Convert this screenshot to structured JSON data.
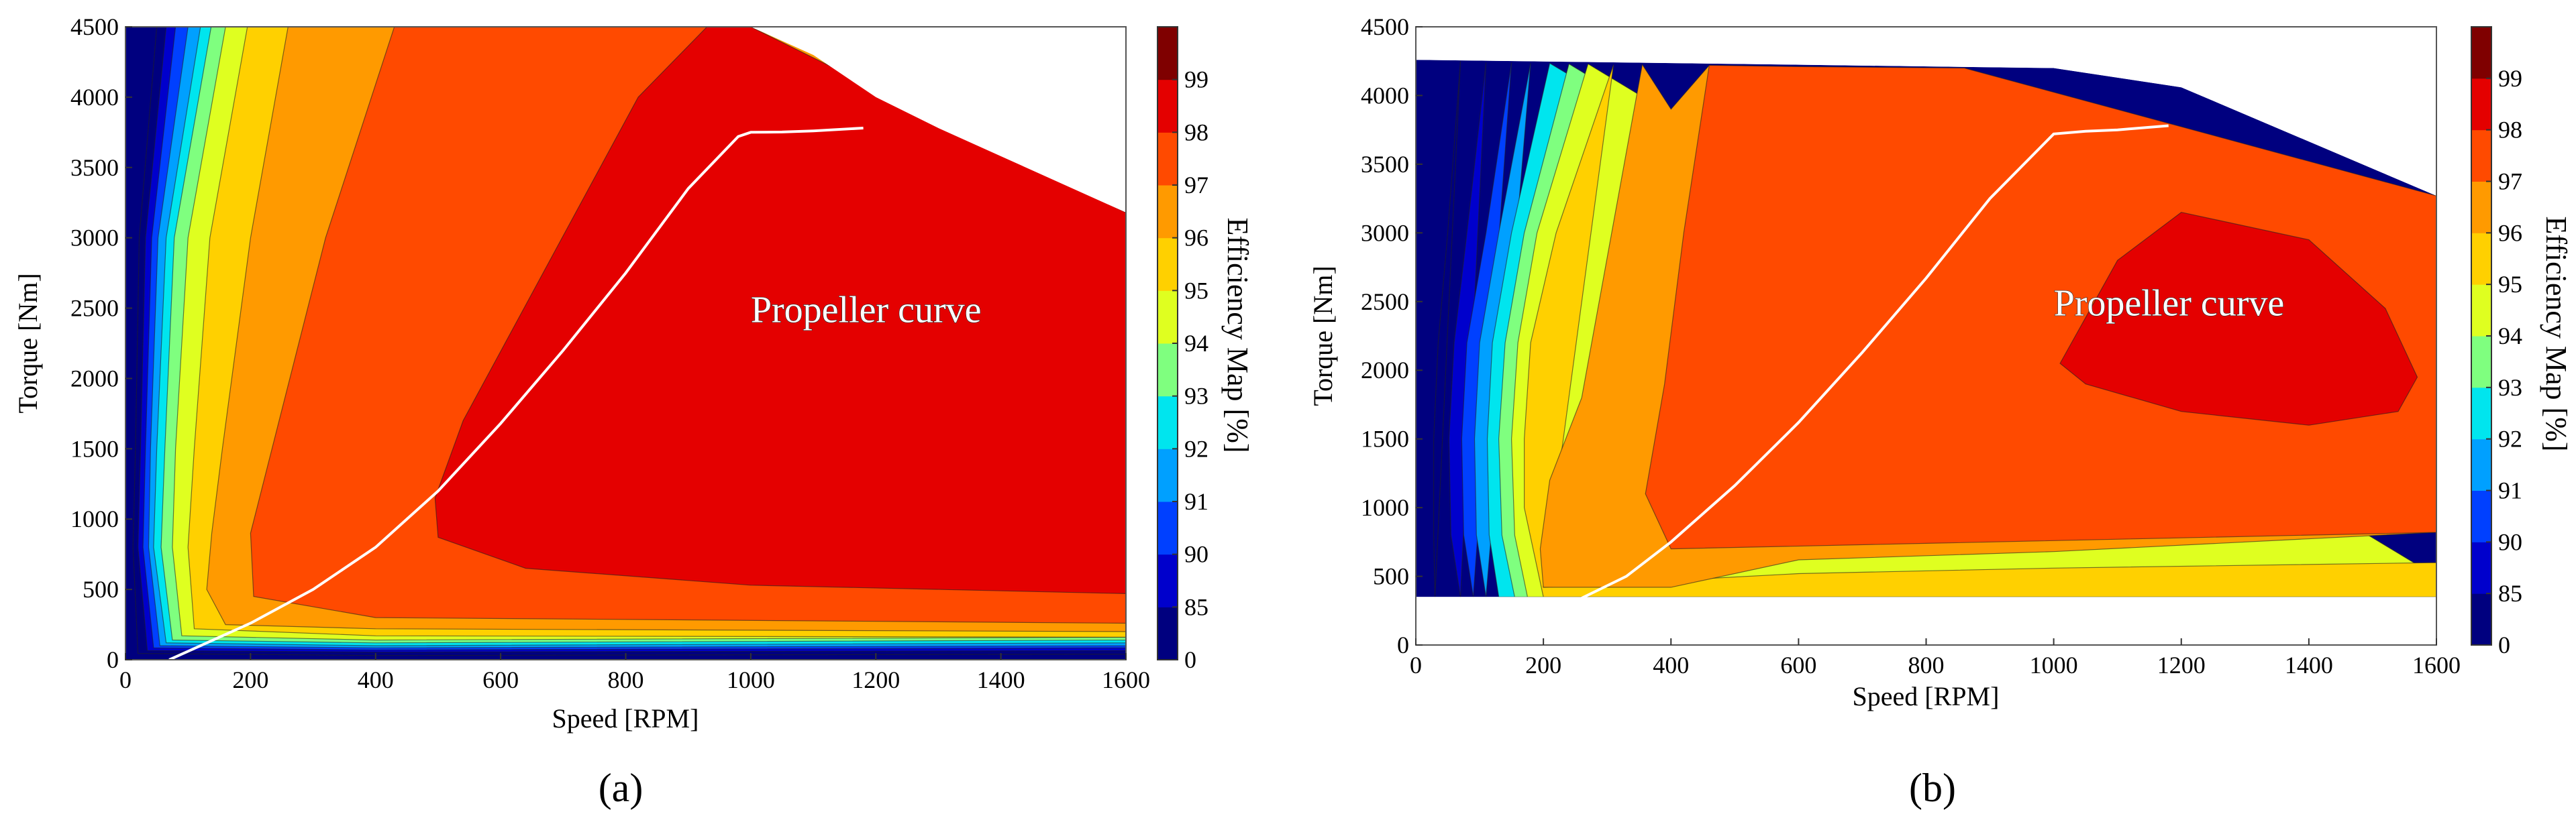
{
  "figure": {
    "panels": [
      {
        "label": "(a)",
        "annotation": "Propeller curve",
        "colorbar_label": "Efficiency Map [%]"
      },
      {
        "label": "(b)",
        "annotation": "Propeller curve",
        "colorbar_label": "Efficiency Map [%]"
      }
    ]
  },
  "chart_data": [
    {
      "type": "contour",
      "panel": "(a)",
      "title": "",
      "xlabel": "Speed [RPM]",
      "ylabel": "Torque [Nm]",
      "xlim": [
        0,
        1600
      ],
      "ylim": [
        0,
        4500
      ],
      "xticks": [
        0,
        200,
        400,
        600,
        800,
        1000,
        1200,
        1400,
        1600
      ],
      "yticks": [
        0,
        500,
        1000,
        1500,
        2000,
        2500,
        3000,
        3500,
        4000,
        4500
      ],
      "colorbar": {
        "label": "Efficiency Map [%]",
        "tick_labels": [
          "0",
          "85",
          "90",
          "91",
          "92",
          "93",
          "94",
          "95",
          "96",
          "97",
          "98",
          "99"
        ],
        "colors": [
          "#00007f",
          "#0000cc",
          "#0040ff",
          "#00a0ff",
          "#00e5ee",
          "#7fff7f",
          "#dfff20",
          "#ffd000",
          "#ff9a00",
          "#ff4a00",
          "#e40000",
          "#7f0000"
        ]
      },
      "torque_envelope": {
        "speed": [
          0,
          1000,
          1100,
          1200,
          1300,
          1400,
          1500,
          1600
        ],
        "torque": [
          4500,
          4500,
          4300,
          4000,
          3780,
          3580,
          3380,
          3180
        ]
      },
      "efficiency_levels": [
        {
          "efficiency": "99",
          "speed": [
            930,
            820,
            540,
            495,
            500,
            640,
            1000,
            1600,
            1600,
            1000
          ],
          "torque": [
            4500,
            4000,
            1700,
            1150,
            870,
            650,
            530,
            470,
            3180,
            4500
          ]
        },
        {
          "efficiency": "98",
          "speed": [
            430,
            320,
            200,
            205,
            400,
            1600,
            1600,
            1000
          ],
          "torque": [
            4500,
            3000,
            900,
            450,
            300,
            260,
            470,
            4500
          ]
        },
        {
          "efficiency": "97",
          "speed": [
            260,
            200,
            155,
            138,
            130,
            160,
            400,
            1600,
            1600
          ],
          "torque": [
            4500,
            3000,
            1500,
            900,
            500,
            250,
            220,
            200,
            260
          ]
        },
        {
          "efficiency": "96",
          "speed": [
            195,
            135,
            110,
            100,
            110,
            400,
            1600,
            1600,
            430
          ],
          "torque": [
            4500,
            3000,
            1500,
            800,
            220,
            170,
            160,
            200,
            4500
          ]
        },
        {
          "efficiency": "95",
          "speed": [
            160,
            100,
            80,
            75,
            90,
            400,
            1600
          ],
          "torque": [
            4500,
            3000,
            1500,
            800,
            170,
            140,
            160
          ]
        },
        {
          "efficiency": "94",
          "speed": [
            137,
            78,
            63,
            57,
            75,
            400,
            1600
          ],
          "torque": [
            4500,
            3000,
            1500,
            800,
            140,
            120,
            140
          ]
        },
        {
          "efficiency": "93",
          "speed": [
            120,
            65,
            50,
            45,
            65,
            400,
            1600
          ],
          "torque": [
            4500,
            3000,
            1500,
            800,
            120,
            100,
            120
          ]
        },
        {
          "efficiency": "92",
          "speed": [
            100,
            52,
            40,
            37,
            55,
            400,
            1600
          ],
          "torque": [
            4500,
            3000,
            1500,
            800,
            100,
            85,
            100
          ]
        },
        {
          "efficiency": "91",
          "speed": [
            80,
            42,
            32,
            28,
            45,
            400,
            1600
          ],
          "torque": [
            4500,
            3000,
            1500,
            800,
            85,
            70,
            85
          ]
        },
        {
          "efficiency": "90",
          "speed": [
            65,
            32,
            24,
            20,
            35,
            400,
            1600
          ],
          "torque": [
            4500,
            3000,
            1500,
            800,
            65,
            55,
            65
          ]
        },
        {
          "efficiency": "85",
          "speed": [
            50,
            22,
            16,
            12,
            20,
            400,
            1600
          ],
          "torque": [
            4500,
            3000,
            1500,
            800,
            45,
            30,
            40
          ]
        }
      ],
      "propeller_curve": {
        "speed": [
          70,
          200,
          300,
          400,
          500,
          600,
          700,
          800,
          900,
          980,
          1000,
          1050,
          1100,
          1180
        ],
        "torque": [
          0,
          260,
          500,
          800,
          1200,
          1680,
          2200,
          2750,
          3350,
          3720,
          3750,
          3752,
          3760,
          3780
        ]
      },
      "annotation": {
        "text": "Propeller curve",
        "speed": 1000,
        "torque": 2400
      }
    },
    {
      "type": "contour",
      "panel": "(b)",
      "title": "",
      "xlabel": "Speed [RPM]",
      "ylabel": "Torque [Nm]",
      "xlim": [
        0,
        1600
      ],
      "ylim": [
        0,
        4500
      ],
      "xticks": [
        0,
        200,
        400,
        600,
        800,
        1000,
        1200,
        1400,
        1600
      ],
      "yticks": [
        0,
        500,
        1000,
        1500,
        2000,
        2500,
        3000,
        3500,
        4000,
        4500
      ],
      "colorbar": {
        "label": "Efficiency Map [%]",
        "tick_labels": [
          "0",
          "85",
          "90",
          "91",
          "92",
          "93",
          "94",
          "95",
          "96",
          "97",
          "98",
          "99"
        ],
        "colors": [
          "#00007f",
          "#0000cc",
          "#0040ff",
          "#00a0ff",
          "#00e5ee",
          "#7fff7f",
          "#dfff20",
          "#ffd000",
          "#ff9a00",
          "#ff4a00",
          "#e40000",
          "#7f0000"
        ]
      },
      "torque_envelope": {
        "speed": [
          0,
          1000,
          1200,
          1600,
          1600,
          0
        ],
        "torque": [
          4260,
          4200,
          4060,
          3270,
          350,
          350
        ]
      },
      "efficiency_levels": [
        {
          "efficiency": "99",
          "speed": [
            1010,
            1100,
            1200,
            1400,
            1520,
            1570,
            1540,
            1400,
            1200,
            1050,
            1010
          ],
          "torque": [
            2050,
            2800,
            3150,
            2950,
            2450,
            1950,
            1700,
            1600,
            1700,
            1900,
            2050
          ]
        },
        {
          "efficiency": "98",
          "speed": [
            460,
            600,
            860,
            1600,
            1600,
            1200,
            800,
            400,
            360,
            390,
            420
          ],
          "torque": [
            4220,
            4210,
            4200,
            3270,
            820,
            780,
            740,
            700,
            1100,
            1900,
            3000
          ]
        },
        {
          "efficiency": "97",
          "speed": [
            355,
            400,
            460,
            1600,
            1600,
            1000,
            600,
            400,
            200,
            195,
            210,
            260
          ],
          "torque": [
            4225,
            3900,
            4220,
            3270,
            820,
            680,
            620,
            420,
            420,
            700,
            1200,
            1800
          ]
        },
        {
          "efficiency": "96",
          "speed": [
            310,
            220,
            180,
            170,
            170,
            200,
            1600,
            1600,
            1000,
            600,
            200
          ],
          "torque": [
            4225,
            3000,
            2200,
            1500,
            1000,
            350,
            350,
            600,
            560,
            520,
            420
          ]
        },
        {
          "efficiency": "95",
          "speed": [
            270,
            190,
            160,
            150,
            155,
            175,
            1600,
            1600
          ],
          "torque": [
            4230,
            3000,
            2200,
            1500,
            800,
            350,
            350,
            500
          ]
        },
        {
          "efficiency": "94",
          "speed": [
            240,
            170,
            140,
            130,
            135,
            155,
            1600,
            1600
          ],
          "torque": [
            4230,
            3000,
            2200,
            1500,
            800,
            350,
            350,
            400
          ]
        },
        {
          "efficiency": "93",
          "speed": [
            210,
            150,
            120,
            112,
            115,
            130,
            1600,
            1600
          ],
          "torque": [
            4235,
            3000,
            2200,
            1500,
            800,
            350,
            350,
            380
          ]
        },
        {
          "efficiency": "92",
          "speed": [
            180,
            130,
            100,
            92,
            95,
            110
          ],
          "torque": [
            4235,
            3000,
            2200,
            1500,
            800,
            350
          ]
        },
        {
          "efficiency": "91",
          "speed": [
            150,
            110,
            80,
            72,
            75,
            90
          ],
          "torque": [
            4240,
            3000,
            2200,
            1500,
            800,
            350
          ]
        },
        {
          "efficiency": "90",
          "speed": [
            110,
            80,
            60,
            52,
            55,
            70
          ],
          "torque": [
            4240,
            3000,
            2200,
            1500,
            800,
            350
          ]
        },
        {
          "efficiency": "85",
          "speed": [
            70,
            50,
            35,
            28,
            28,
            30
          ],
          "torque": [
            4250,
            3000,
            2200,
            1500,
            800,
            350
          ]
        }
      ],
      "propeller_curve": {
        "speed": [
          255,
          330,
          400,
          500,
          600,
          700,
          800,
          900,
          1000,
          1050,
          1100,
          1180
        ],
        "torque": [
          330,
          500,
          750,
          1160,
          1620,
          2130,
          2670,
          3250,
          3720,
          3740,
          3750,
          3780
        ]
      },
      "annotation": {
        "text": "Propeller curve",
        "speed": 1000,
        "torque": 2400
      }
    }
  ]
}
